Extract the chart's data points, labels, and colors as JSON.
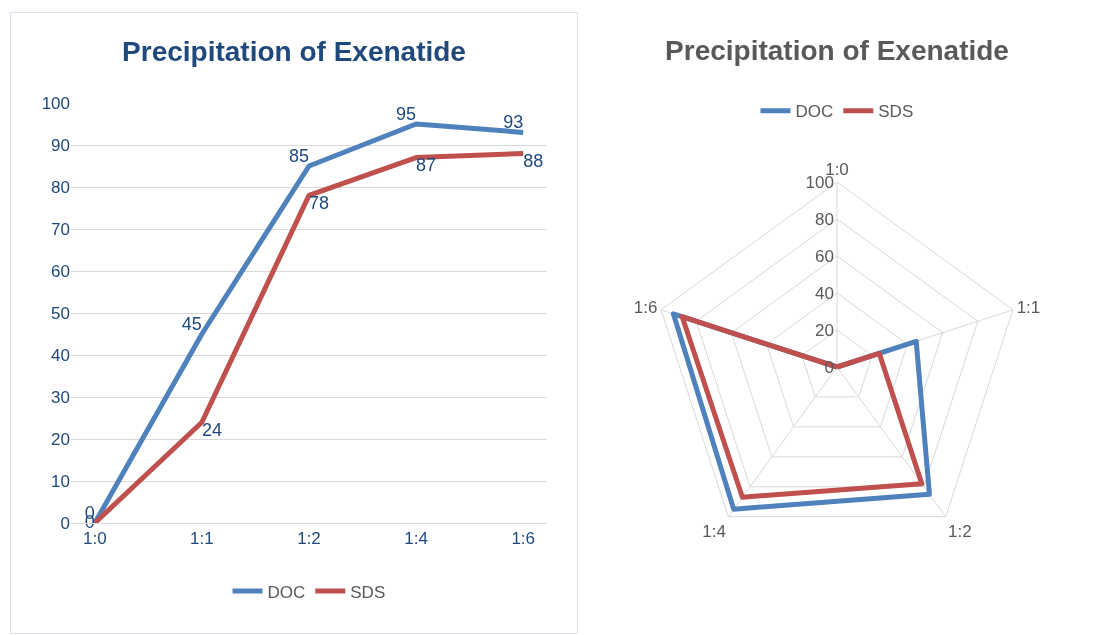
{
  "chart_data": [
    {
      "type": "line",
      "title": "Precipitation of Exenatide",
      "categories": [
        "1:0",
        "1:1",
        "1:2",
        "1:4",
        "1:6"
      ],
      "series": [
        {
          "name": "DOC",
          "color": "#4f81bd",
          "values": [
            0,
            45,
            85,
            95,
            93
          ]
        },
        {
          "name": "SDS",
          "color": "#c0504d",
          "values": [
            0,
            24,
            78,
            87,
            88
          ]
        }
      ],
      "ylim": [
        0,
        100
      ],
      "yticks": [
        0,
        10,
        20,
        30,
        40,
        50,
        60,
        70,
        80,
        90,
        100
      ],
      "grid": "y",
      "legend": "bottom",
      "data_labels": true,
      "marker": "none"
    },
    {
      "type": "radar",
      "title": "Precipitation of Exenatide",
      "categories": [
        "1:0",
        "1:1",
        "1:2",
        "1:4",
        "1:6"
      ],
      "series": [
        {
          "name": "DOC",
          "color": "#4f81bd",
          "values": [
            0,
            45,
            85,
            95,
            93
          ]
        },
        {
          "name": "SDS",
          "color": "#c0504d",
          "values": [
            0,
            24,
            78,
            87,
            88
          ]
        }
      ],
      "ylim": [
        0,
        100
      ],
      "yticks": [
        0,
        20,
        40,
        60,
        80,
        100
      ],
      "grid": true,
      "legend": "top",
      "marker": "none"
    }
  ]
}
